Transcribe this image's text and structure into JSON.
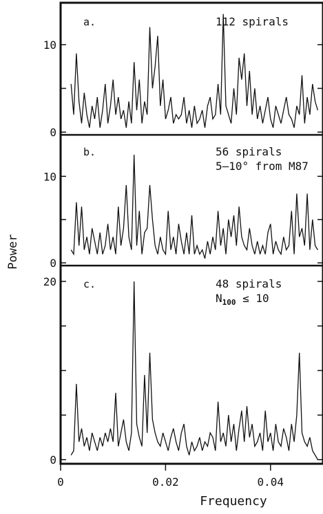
{
  "figure": {
    "ylabel": "Power",
    "xlabel": "Frequency",
    "xlim": [
      0,
      0.05
    ],
    "xticks": [
      0,
      0.02,
      0.04
    ],
    "xtick_labels": [
      "0",
      "0.02",
      "0.04"
    ]
  },
  "chart_data": [
    {
      "type": "line",
      "panel_letter": "a.",
      "annotation": [
        "112 spirals"
      ],
      "ylim": [
        0,
        14
      ],
      "yticks": [
        0,
        5,
        10
      ],
      "ytick_labels": [
        "0",
        "",
        "10"
      ],
      "x": [
        0.002,
        0.0025,
        0.003,
        0.0035,
        0.004,
        0.0045,
        0.005,
        0.0055,
        0.006,
        0.0065,
        0.007,
        0.0075,
        0.008,
        0.0085,
        0.009,
        0.0095,
        0.01,
        0.0105,
        0.011,
        0.0115,
        0.012,
        0.0125,
        0.013,
        0.0135,
        0.014,
        0.0145,
        0.015,
        0.0155,
        0.016,
        0.0165,
        0.017,
        0.0175,
        0.018,
        0.0185,
        0.019,
        0.0195,
        0.02,
        0.0205,
        0.021,
        0.0215,
        0.022,
        0.0225,
        0.023,
        0.0235,
        0.024,
        0.0245,
        0.025,
        0.0255,
        0.026,
        0.0265,
        0.027,
        0.0275,
        0.028,
        0.0285,
        0.029,
        0.0295,
        0.03,
        0.0305,
        0.031,
        0.0315,
        0.032,
        0.0325,
        0.033,
        0.0335,
        0.034,
        0.0345,
        0.035,
        0.0355,
        0.036,
        0.0365,
        0.037,
        0.0375,
        0.038,
        0.0385,
        0.039,
        0.0395,
        0.04,
        0.0405,
        0.041,
        0.0415,
        0.042,
        0.0425,
        0.043,
        0.0435,
        0.044,
        0.0445,
        0.045,
        0.0455,
        0.046,
        0.0465,
        0.047,
        0.0475,
        0.048,
        0.0485,
        0.049
      ],
      "values": [
        5.5,
        2.0,
        9.0,
        3.5,
        1.0,
        4.5,
        2.0,
        0.5,
        3.0,
        1.5,
        4.0,
        0.5,
        2.5,
        5.5,
        1.0,
        3.0,
        6.0,
        2.0,
        4.0,
        1.5,
        2.5,
        0.5,
        3.5,
        1.0,
        8.0,
        2.5,
        6.0,
        1.0,
        3.5,
        2.0,
        12.0,
        5.0,
        7.5,
        11.0,
        3.0,
        6.0,
        1.5,
        2.5,
        4.0,
        1.0,
        2.0,
        1.5,
        2.0,
        4.0,
        1.0,
        2.5,
        0.5,
        3.0,
        1.0,
        1.5,
        2.5,
        0.5,
        3.0,
        4.0,
        1.5,
        2.0,
        5.5,
        2.0,
        13.5,
        3.0,
        2.0,
        1.0,
        5.0,
        2.0,
        8.5,
        6.0,
        9.0,
        3.0,
        7.0,
        2.0,
        5.0,
        1.5,
        3.0,
        1.0,
        2.5,
        4.0,
        1.5,
        0.5,
        3.0,
        2.0,
        1.0,
        2.5,
        4.0,
        2.0,
        1.5,
        0.5,
        3.0,
        2.0,
        6.5,
        1.0,
        4.0,
        2.0,
        5.5,
        3.5,
        2.5
      ]
    },
    {
      "type": "line",
      "panel_letter": "b.",
      "annotation": [
        "56 spirals",
        "5–10° from M87"
      ],
      "ylim": [
        0,
        14
      ],
      "yticks": [
        0,
        5,
        10
      ],
      "ytick_labels": [
        "0",
        "",
        "10"
      ],
      "x": [
        0.002,
        0.0025,
        0.003,
        0.0035,
        0.004,
        0.0045,
        0.005,
        0.0055,
        0.006,
        0.0065,
        0.007,
        0.0075,
        0.008,
        0.0085,
        0.009,
        0.0095,
        0.01,
        0.0105,
        0.011,
        0.0115,
        0.012,
        0.0125,
        0.013,
        0.0135,
        0.014,
        0.0145,
        0.015,
        0.0155,
        0.016,
        0.0165,
        0.017,
        0.0175,
        0.018,
        0.0185,
        0.019,
        0.0195,
        0.02,
        0.0205,
        0.021,
        0.0215,
        0.022,
        0.0225,
        0.023,
        0.0235,
        0.024,
        0.0245,
        0.025,
        0.0255,
        0.026,
        0.0265,
        0.027,
        0.0275,
        0.028,
        0.0285,
        0.029,
        0.0295,
        0.03,
        0.0305,
        0.031,
        0.0315,
        0.032,
        0.0325,
        0.033,
        0.0335,
        0.034,
        0.0345,
        0.035,
        0.0355,
        0.036,
        0.0365,
        0.037,
        0.0375,
        0.038,
        0.0385,
        0.039,
        0.0395,
        0.04,
        0.0405,
        0.041,
        0.0415,
        0.042,
        0.0425,
        0.043,
        0.0435,
        0.044,
        0.0445,
        0.045,
        0.0455,
        0.046,
        0.0465,
        0.047,
        0.0475,
        0.048,
        0.0485,
        0.049
      ],
      "values": [
        1.5,
        1.0,
        7.0,
        2.0,
        6.5,
        1.5,
        3.0,
        1.0,
        4.0,
        2.5,
        1.0,
        3.5,
        1.0,
        2.0,
        4.5,
        1.5,
        3.0,
        1.0,
        6.5,
        2.0,
        4.0,
        9.0,
        3.0,
        1.5,
        12.5,
        2.0,
        6.0,
        1.0,
        3.5,
        4.0,
        9.0,
        5.0,
        2.0,
        1.0,
        3.0,
        1.5,
        1.0,
        6.0,
        1.5,
        3.0,
        1.0,
        4.5,
        2.5,
        1.0,
        3.5,
        1.0,
        5.5,
        1.0,
        2.0,
        1.0,
        1.5,
        0.5,
        2.5,
        1.0,
        3.0,
        1.5,
        6.0,
        2.0,
        4.0,
        1.0,
        5.0,
        3.0,
        5.5,
        2.0,
        6.5,
        3.0,
        2.0,
        1.5,
        4.0,
        2.0,
        1.0,
        2.5,
        1.0,
        2.0,
        1.0,
        3.5,
        4.5,
        1.0,
        2.5,
        1.5,
        1.0,
        3.0,
        1.5,
        2.0,
        6.0,
        1.0,
        8.0,
        3.0,
        4.0,
        2.0,
        8.0,
        1.5,
        5.0,
        2.0,
        1.5
      ]
    },
    {
      "type": "line",
      "panel_letter": "c.",
      "annotation": [
        "48 spirals",
        "N100 ≤ 10"
      ],
      "ylim": [
        0,
        21
      ],
      "yticks": [
        0,
        5,
        10,
        15,
        20
      ],
      "ytick_labels": [
        "0",
        "",
        "",
        "",
        "20"
      ],
      "x": [
        0.002,
        0.0025,
        0.003,
        0.0035,
        0.004,
        0.0045,
        0.005,
        0.0055,
        0.006,
        0.0065,
        0.007,
        0.0075,
        0.008,
        0.0085,
        0.009,
        0.0095,
        0.01,
        0.0105,
        0.011,
        0.0115,
        0.012,
        0.0125,
        0.013,
        0.0135,
        0.014,
        0.0145,
        0.015,
        0.0155,
        0.016,
        0.0165,
        0.017,
        0.0175,
        0.018,
        0.0185,
        0.019,
        0.0195,
        0.02,
        0.0205,
        0.021,
        0.0215,
        0.022,
        0.0225,
        0.023,
        0.0235,
        0.024,
        0.0245,
        0.025,
        0.0255,
        0.026,
        0.0265,
        0.027,
        0.0275,
        0.028,
        0.0285,
        0.029,
        0.0295,
        0.03,
        0.0305,
        0.031,
        0.0315,
        0.032,
        0.0325,
        0.033,
        0.0335,
        0.034,
        0.0345,
        0.035,
        0.0355,
        0.036,
        0.0365,
        0.037,
        0.0375,
        0.038,
        0.0385,
        0.039,
        0.0395,
        0.04,
        0.0405,
        0.041,
        0.0415,
        0.042,
        0.0425,
        0.043,
        0.0435,
        0.044,
        0.0445,
        0.045,
        0.0455,
        0.046,
        0.0465,
        0.047,
        0.0475,
        0.048,
        0.0485,
        0.049
      ],
      "values": [
        0.5,
        1.0,
        8.5,
        2.0,
        3.5,
        1.5,
        2.5,
        1.0,
        3.0,
        2.0,
        1.0,
        2.5,
        1.5,
        3.0,
        2.0,
        3.5,
        2.0,
        7.5,
        1.5,
        3.0,
        4.5,
        2.0,
        1.0,
        3.0,
        20.0,
        4.0,
        2.5,
        1.5,
        9.5,
        3.0,
        12.0,
        4.5,
        3.0,
        2.0,
        1.5,
        3.0,
        2.0,
        1.0,
        2.5,
        3.5,
        2.0,
        1.0,
        3.0,
        4.0,
        1.5,
        0.5,
        2.0,
        1.0,
        1.5,
        2.5,
        1.0,
        2.0,
        1.5,
        3.0,
        2.5,
        1.0,
        6.5,
        2.0,
        3.0,
        1.5,
        5.0,
        2.0,
        4.0,
        1.0,
        3.5,
        5.5,
        2.0,
        6.0,
        2.5,
        4.0,
        1.5,
        2.0,
        3.0,
        1.0,
        5.5,
        2.0,
        3.0,
        1.0,
        4.0,
        2.0,
        1.5,
        3.5,
        2.5,
        1.0,
        4.0,
        2.0,
        5.0,
        12.0,
        3.0,
        2.0,
        1.5,
        2.5,
        1.0,
        0.5,
        0.0
      ]
    }
  ]
}
